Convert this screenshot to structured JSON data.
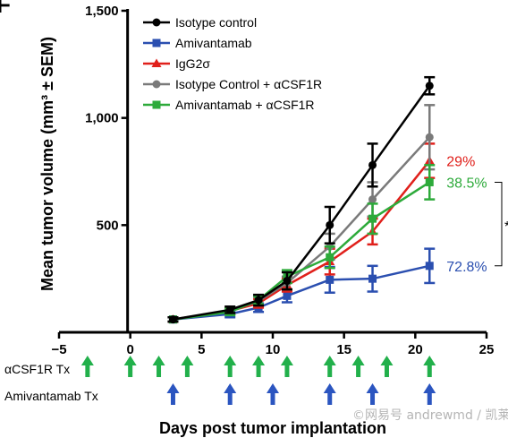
{
  "panel_letter": "F",
  "watermark": "©网易号 andrewmd / 凯莱英药闻",
  "colors": {
    "isotype_control": "#000000",
    "amivantamab": "#2b4fb0",
    "igg2": "#e0201b",
    "isotype_acsf1r": "#7a7a7a",
    "amivantamab_acsf1r": "#2daa3a",
    "acsf1r_arrow": "#22b04b",
    "amivantamab_arrow": "#2b55c0"
  },
  "chart_data": {
    "type": "line",
    "xlabel": "Days post tumor implantation",
    "ylabel": "Mean tumor volume (mm³ ± SEM)",
    "xlim": [
      -5,
      25
    ],
    "ylim": [
      0,
      1500
    ],
    "xticks": [
      -5,
      0,
      5,
      10,
      15,
      20,
      25
    ],
    "yticks": [
      500,
      1000,
      1500
    ],
    "ytick_labels": [
      "500",
      "1,000",
      "1,500"
    ],
    "legend_position": "top-left",
    "series": [
      {
        "name": "Isotype control",
        "color": "#000000",
        "marker": "circle",
        "x": [
          3,
          7,
          9,
          11,
          14,
          17,
          21
        ],
        "y": [
          60,
          105,
          150,
          240,
          500,
          780,
          1150
        ],
        "err": [
          10,
          15,
          25,
          40,
          85,
          100,
          40
        ]
      },
      {
        "name": "Amivantamab",
        "color": "#2b4fb0",
        "marker": "square",
        "x": [
          3,
          7,
          9,
          11,
          14,
          17,
          21
        ],
        "y": [
          60,
          85,
          115,
          170,
          245,
          250,
          310
        ],
        "err": [
          10,
          15,
          20,
          30,
          60,
          60,
          80
        ]
      },
      {
        "name": "IgG2σ",
        "color": "#e0201b",
        "marker": "triangle",
        "x": [
          3,
          7,
          9,
          11,
          14,
          17,
          21
        ],
        "y": [
          60,
          100,
          135,
          220,
          330,
          470,
          800
        ],
        "err": [
          10,
          15,
          20,
          30,
          60,
          60,
          80
        ]
      },
      {
        "name": "Isotype Control + αCSF1R",
        "color": "#7a7a7a",
        "marker": "circle",
        "x": [
          3,
          7,
          9,
          11,
          14,
          17,
          21
        ],
        "y": [
          60,
          100,
          145,
          230,
          400,
          620,
          910
        ],
        "err": [
          10,
          15,
          20,
          30,
          60,
          80,
          150
        ]
      },
      {
        "name": "Amivantamab + αCSF1R",
        "color": "#2daa3a",
        "marker": "square",
        "x": [
          3,
          7,
          9,
          11,
          14,
          17,
          21
        ],
        "y": [
          60,
          95,
          150,
          260,
          350,
          530,
          700
        ],
        "err": [
          10,
          15,
          20,
          30,
          50,
          70,
          80
        ]
      }
    ],
    "annotations": [
      {
        "text": "29%",
        "color": "#e0201b",
        "at_value": 800
      },
      {
        "text": "38.5%",
        "color": "#2daa3a",
        "at_value": 700
      },
      {
        "text": "72.8%",
        "color": "#2b4fb0",
        "at_value": 310
      },
      {
        "text": "*",
        "color": "#000000",
        "bracket_from": 700,
        "bracket_to": 310
      }
    ],
    "dosing": [
      {
        "label": "αCSF1R Tx",
        "color": "#22b04b",
        "days": [
          -3,
          0,
          2,
          4,
          7,
          9,
          11,
          14,
          16,
          18,
          21
        ]
      },
      {
        "label": "Amivantamab Tx",
        "color": "#2b55c0",
        "days": [
          3,
          7,
          10,
          14,
          17,
          21
        ]
      }
    ]
  }
}
